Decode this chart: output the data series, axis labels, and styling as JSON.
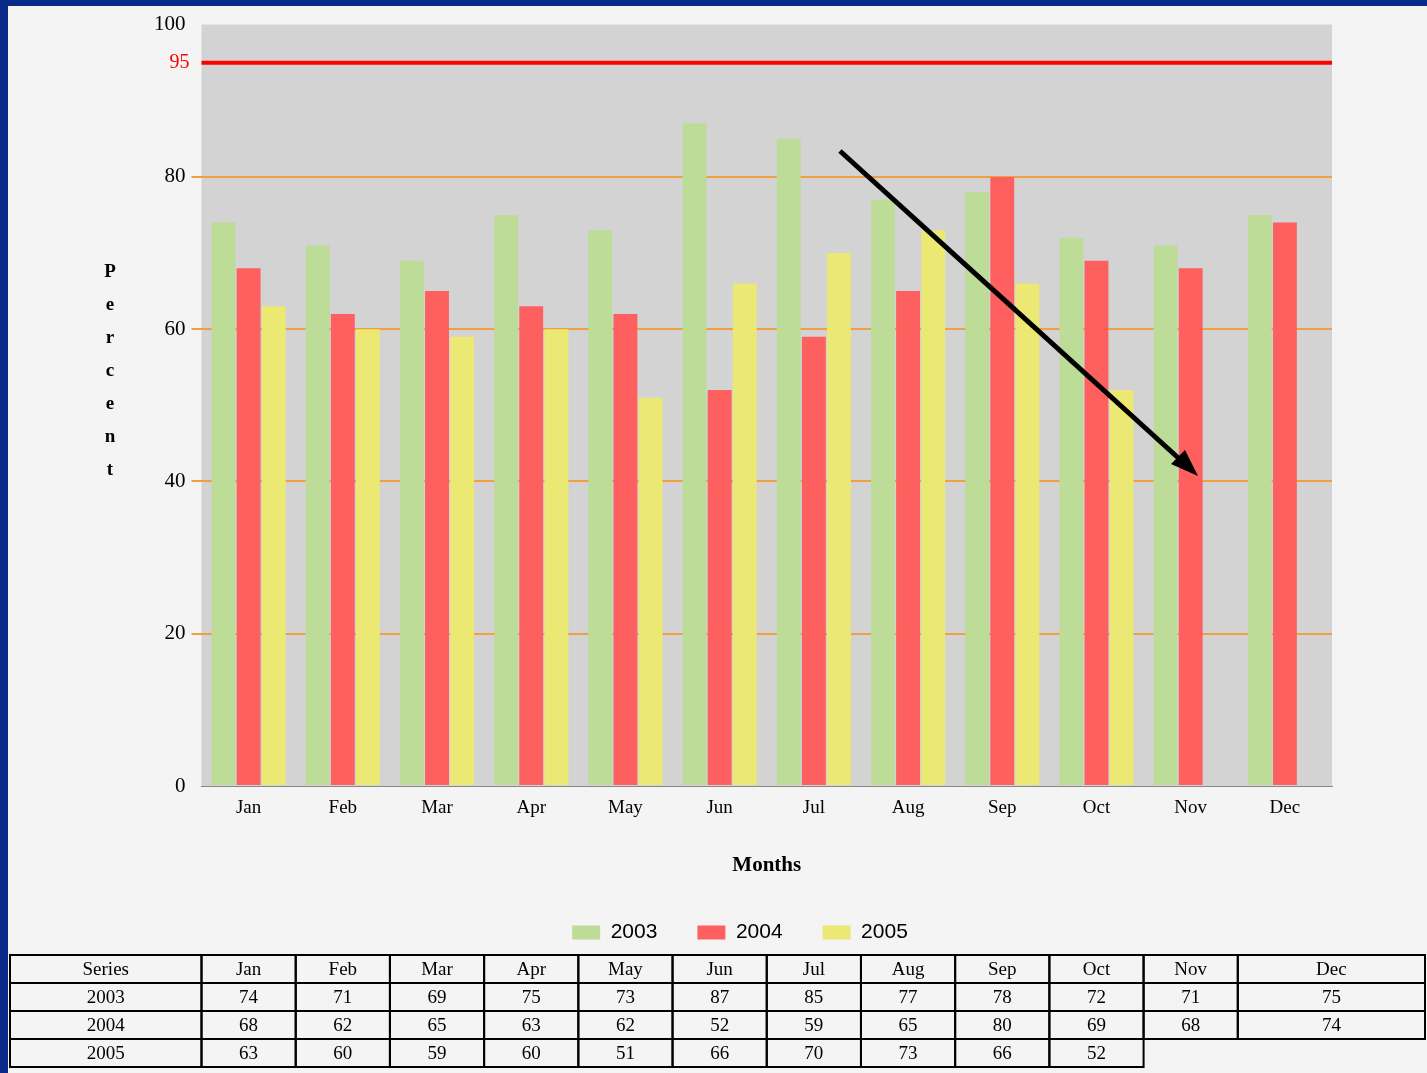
{
  "chart_data": {
    "type": "bar",
    "xlabel": "Months",
    "ylabel": "Percent",
    "categories": [
      "Jan",
      "Feb",
      "Mar",
      "Apr",
      "May",
      "Jun",
      "Jul",
      "Aug",
      "Sep",
      "Oct",
      "Nov",
      "Dec"
    ],
    "series": [
      {
        "name": "2003",
        "color": "#bcdc98",
        "values": [
          74,
          71,
          69,
          75,
          73,
          87,
          85,
          77,
          78,
          72,
          71,
          75
        ]
      },
      {
        "name": "2004",
        "color": "#fe5f5f",
        "values": [
          68,
          62,
          65,
          63,
          62,
          52,
          59,
          65,
          80,
          69,
          68,
          74
        ]
      },
      {
        "name": "2005",
        "color": "#ece874",
        "values": [
          63,
          60,
          59,
          60,
          51,
          66,
          70,
          73,
          66,
          52,
          null,
          null
        ]
      }
    ],
    "ylim": [
      0,
      100
    ],
    "yticks": [
      0,
      20,
      40,
      60,
      80,
      100
    ],
    "ref_lines": [
      {
        "axis": "y",
        "value": 95,
        "label": "95",
        "color": "#ff0000"
      }
    ],
    "grid": "y",
    "legend": "bottom",
    "data_labels": true,
    "legend_title": "Series"
  }
}
